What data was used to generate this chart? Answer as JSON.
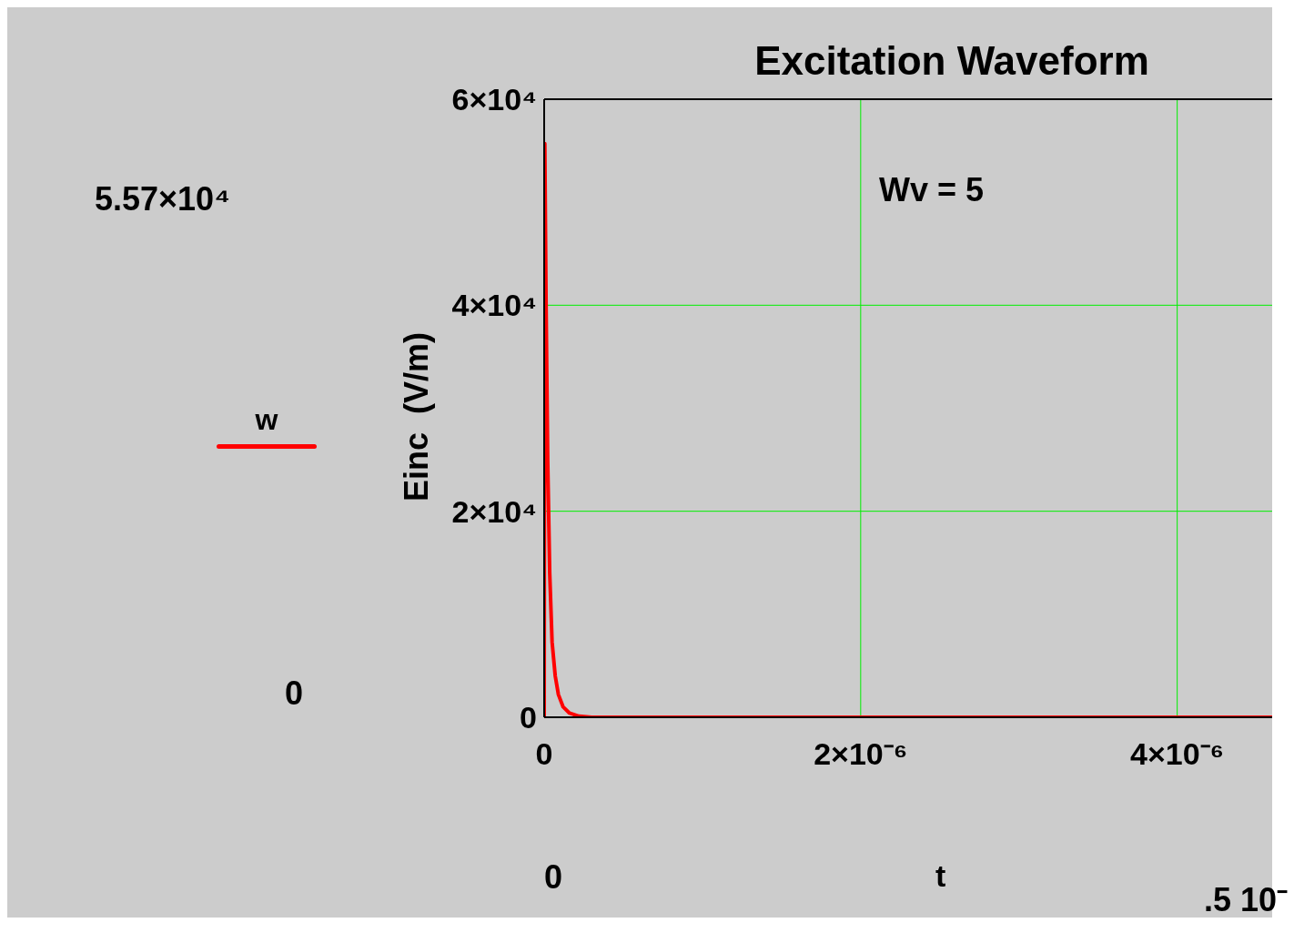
{
  "chart_data": {
    "type": "line",
    "title": "Excitation Waveform",
    "xlabel": "t",
    "ylabel": "Einc  (V/m)",
    "x": [
      0,
      4e-09,
      1.2e-08,
      2.25e-08,
      3.5e-08,
      5e-08,
      7e-08,
      9e-08,
      1.2e-07,
      1.6e-07,
      2.2e-07,
      3e-07,
      1e-06,
      2e-06,
      3e-06,
      4e-06,
      4.6e-06
    ],
    "series": [
      {
        "name": "w",
        "color": "#ff0000",
        "values": [
          0,
          55700,
          40000,
          24800,
          14000,
          7300,
          4000,
          2200,
          1000,
          400,
          100,
          0,
          0,
          0,
          0,
          0,
          0
        ]
      }
    ],
    "xlim": [
      0,
      4.6e-06
    ],
    "xticks": [
      0,
      {
        "value": 2e-06,
        "label": "2×10⁻⁶"
      },
      {
        "value": 4e-06,
        "label": "4×10⁻⁶"
      }
    ],
    "ylim": [
      0,
      60000
    ],
    "yticks": [
      0,
      {
        "value": 20000,
        "label": "2×10⁴"
      },
      {
        "value": 40000,
        "label": "4×10⁴"
      },
      {
        "value": 60000,
        "label": "6×10⁴"
      }
    ],
    "grid": true,
    "legend": "left",
    "marker": "none",
    "line_style": "solid",
    "annotations": [
      "Wv = 5",
      "5.57×10⁴",
      "0",
      "0",
      ".5 10⁻"
    ]
  }
}
